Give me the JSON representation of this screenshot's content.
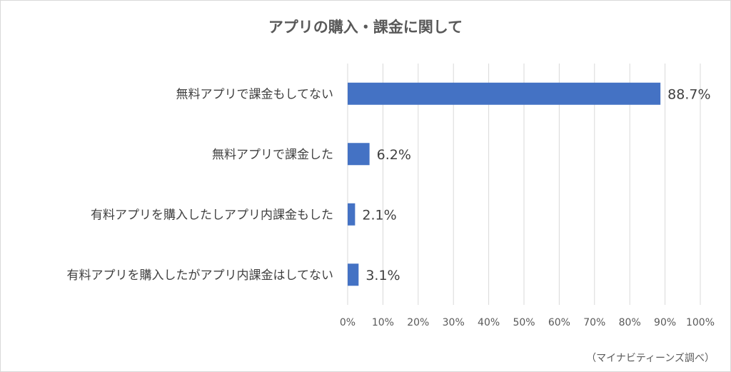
{
  "chart_data": {
    "type": "bar",
    "orientation": "horizontal",
    "title": "アプリの購入・課金に関して",
    "categories": [
      "無料アプリで課金もしてない",
      "無料アプリで課金した",
      "有料アプリを購入したしアプリ内課金もした",
      "有料アプリを購入したがアプリ内課金はしてない"
    ],
    "values": [
      88.7,
      6.2,
      2.1,
      3.1
    ],
    "data_labels": [
      "88.7%",
      "6.2%",
      "2.1%",
      "3.1%"
    ],
    "xlim": [
      0,
      100
    ],
    "xticks": [
      0,
      10,
      20,
      30,
      40,
      50,
      60,
      70,
      80,
      90,
      100
    ],
    "xtick_labels": [
      "0%",
      "10%",
      "20%",
      "30%",
      "40%",
      "50%",
      "60%",
      "70%",
      "80%",
      "90%",
      "100%"
    ],
    "grid": "vertical",
    "bar_color": "#4472c4",
    "source": "（マイナビティーンズ調べ）"
  }
}
